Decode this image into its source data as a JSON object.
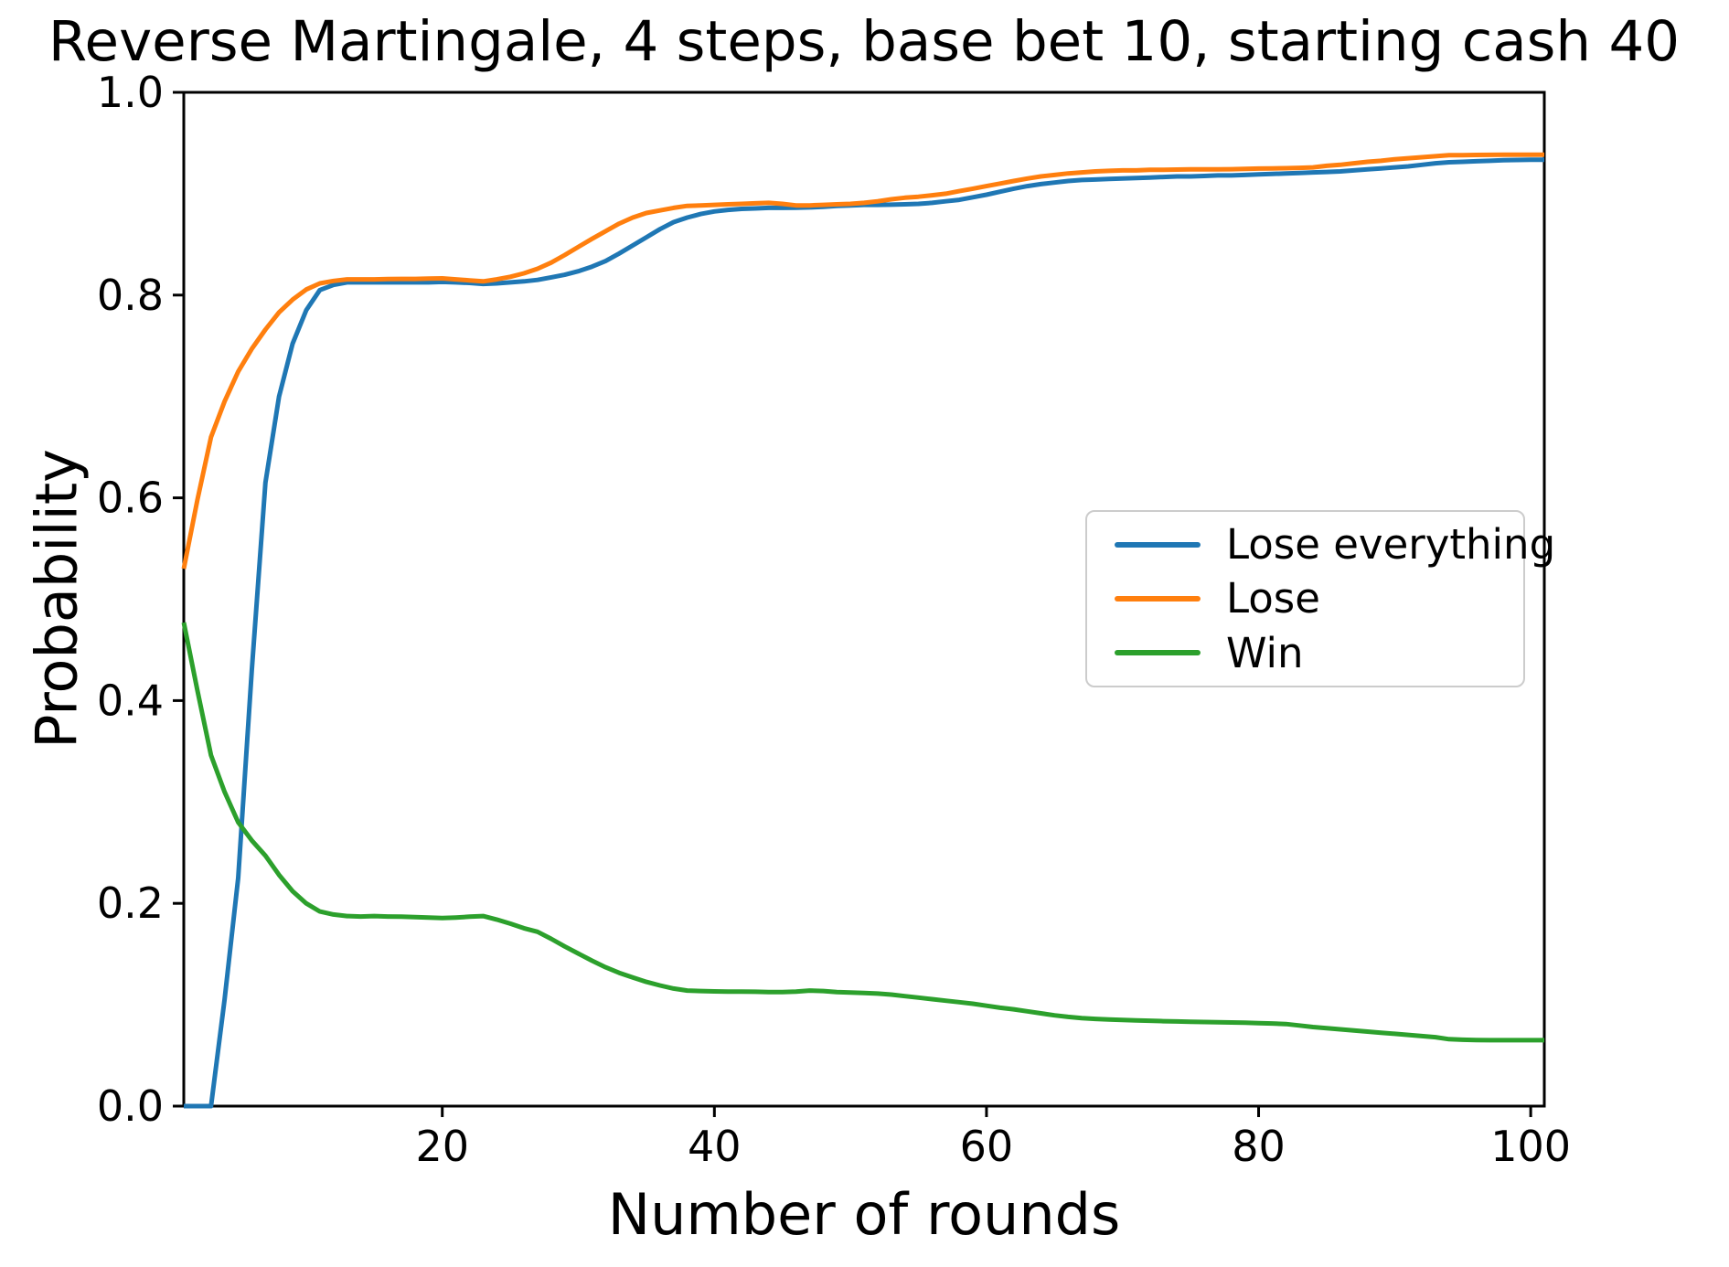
{
  "chart_data": {
    "type": "line",
    "title": "Reverse Martingale, 4 steps, base bet 10, starting cash 40",
    "xlabel": "Number of rounds",
    "ylabel": "Probability",
    "xlim": [
      1,
      101
    ],
    "ylim": [
      0.0,
      1.0
    ],
    "xticks": [
      20,
      40,
      60,
      80,
      100
    ],
    "xtick_labels": [
      "20",
      "40",
      "60",
      "80",
      "100"
    ],
    "yticks": [
      0.0,
      0.2,
      0.4,
      0.6,
      0.8,
      1.0
    ],
    "ytick_labels": [
      "0.0",
      "0.2",
      "0.4",
      "0.6",
      "0.8",
      "1.0"
    ],
    "grid": false,
    "legend_position": "center right",
    "x": [
      1,
      2,
      3,
      4,
      5,
      6,
      7,
      8,
      9,
      10,
      11,
      12,
      13,
      14,
      15,
      16,
      17,
      18,
      19,
      20,
      21,
      22,
      23,
      24,
      25,
      26,
      27,
      28,
      29,
      30,
      31,
      32,
      33,
      34,
      35,
      36,
      37,
      38,
      39,
      40,
      41,
      42,
      43,
      44,
      45,
      46,
      47,
      48,
      49,
      50,
      51,
      52,
      53,
      54,
      55,
      56,
      57,
      58,
      59,
      60,
      61,
      62,
      63,
      64,
      65,
      66,
      67,
      68,
      69,
      70,
      71,
      72,
      73,
      74,
      75,
      76,
      77,
      78,
      79,
      80,
      81,
      82,
      83,
      84,
      85,
      86,
      87,
      88,
      89,
      90,
      91,
      92,
      93,
      94,
      95,
      96,
      97,
      98,
      99,
      100,
      101
    ],
    "series": [
      {
        "name": "Lose everything",
        "color": "#1f77b4",
        "values": [
          0,
          0,
          0,
          0.105,
          0.225,
          0.43,
          0.615,
          0.7,
          0.752,
          0.785,
          0.805,
          0.81,
          0.8125,
          0.8125,
          0.8125,
          0.8125,
          0.8125,
          0.8125,
          0.8125,
          0.813,
          0.8125,
          0.812,
          0.811,
          0.8115,
          0.8125,
          0.8135,
          0.815,
          0.8175,
          0.82,
          0.8235,
          0.828,
          0.8335,
          0.841,
          0.849,
          0.857,
          0.865,
          0.872,
          0.8765,
          0.88,
          0.8825,
          0.884,
          0.885,
          0.8855,
          0.886,
          0.886,
          0.8862,
          0.8865,
          0.887,
          0.888,
          0.8885,
          0.889,
          0.889,
          0.8892,
          0.8895,
          0.89,
          0.891,
          0.8925,
          0.894,
          0.8965,
          0.899,
          0.902,
          0.905,
          0.9075,
          0.9095,
          0.911,
          0.9125,
          0.9135,
          0.914,
          0.9145,
          0.915,
          0.9155,
          0.916,
          0.9165,
          0.917,
          0.917,
          0.9175,
          0.918,
          0.918,
          0.9185,
          0.919,
          0.9195,
          0.92,
          0.9205,
          0.921,
          0.9215,
          0.922,
          0.923,
          0.924,
          0.925,
          0.926,
          0.927,
          0.9285,
          0.93,
          0.931,
          0.9315,
          0.932,
          0.9325,
          0.933,
          0.9333,
          0.9335,
          0.9335
        ]
      },
      {
        "name": "Lose",
        "color": "#ff7f0e",
        "values": [
          0.53,
          0.598,
          0.66,
          0.695,
          0.7245,
          0.747,
          0.766,
          0.783,
          0.7955,
          0.8055,
          0.8115,
          0.814,
          0.8155,
          0.8155,
          0.8155,
          0.8158,
          0.816,
          0.816,
          0.8162,
          0.8165,
          0.8155,
          0.8145,
          0.8135,
          0.8155,
          0.818,
          0.8215,
          0.826,
          0.832,
          0.8395,
          0.8475,
          0.8555,
          0.863,
          0.8705,
          0.8765,
          0.881,
          0.8835,
          0.886,
          0.888,
          0.8885,
          0.889,
          0.8895,
          0.89,
          0.8905,
          0.891,
          0.89,
          0.8885,
          0.8885,
          0.889,
          0.8895,
          0.89,
          0.891,
          0.8925,
          0.8945,
          0.896,
          0.897,
          0.8985,
          0.9,
          0.9025,
          0.905,
          0.9075,
          0.91,
          0.9125,
          0.915,
          0.917,
          0.9185,
          0.92,
          0.921,
          0.922,
          0.9225,
          0.923,
          0.923,
          0.9235,
          0.9235,
          0.9238,
          0.924,
          0.924,
          0.924,
          0.9242,
          0.9245,
          0.9248,
          0.925,
          0.9252,
          0.9255,
          0.926,
          0.9275,
          0.9285,
          0.93,
          0.9315,
          0.9325,
          0.934,
          0.935,
          0.936,
          0.937,
          0.938,
          0.938,
          0.9382,
          0.9383,
          0.9385,
          0.9385,
          0.9385,
          0.9385
        ]
      },
      {
        "name": "Win",
        "color": "#2ca02c",
        "values": [
          0.477,
          0.41,
          0.346,
          0.31,
          0.28,
          0.262,
          0.247,
          0.228,
          0.212,
          0.2,
          0.192,
          0.189,
          0.1875,
          0.187,
          0.1875,
          0.187,
          0.1868,
          0.1865,
          0.186,
          0.1855,
          0.186,
          0.1868,
          0.1875,
          0.184,
          0.18,
          0.1755,
          0.172,
          0.165,
          0.1575,
          0.1505,
          0.1435,
          0.137,
          0.1315,
          0.127,
          0.1225,
          0.119,
          0.116,
          0.114,
          0.1135,
          0.1132,
          0.113,
          0.113,
          0.1128,
          0.1125,
          0.1125,
          0.113,
          0.114,
          0.1135,
          0.1125,
          0.112,
          0.1115,
          0.111,
          0.11,
          0.1085,
          0.107,
          0.1055,
          0.104,
          0.1025,
          0.101,
          0.099,
          0.097,
          0.0955,
          0.0935,
          0.0915,
          0.0895,
          0.088,
          0.0868,
          0.086,
          0.0855,
          0.085,
          0.0846,
          0.0842,
          0.0838,
          0.0835,
          0.0832,
          0.083,
          0.0828,
          0.0825,
          0.0822,
          0.0818,
          0.0815,
          0.081,
          0.0795,
          0.078,
          0.0768,
          0.0757,
          0.0746,
          0.0735,
          0.0724,
          0.0713,
          0.0702,
          0.0691,
          0.068,
          0.066,
          0.0655,
          0.0652,
          0.065,
          0.065,
          0.065,
          0.065,
          0.065
        ]
      }
    ]
  }
}
